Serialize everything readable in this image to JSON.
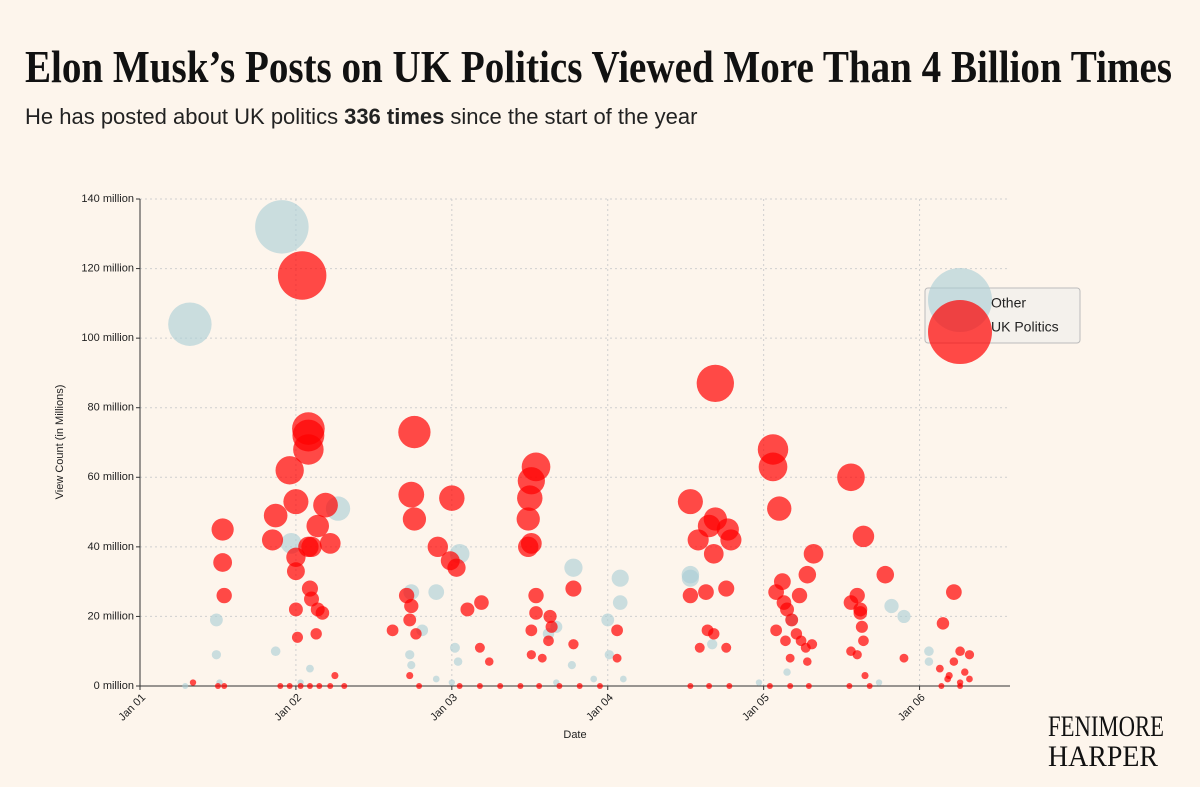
{
  "chart_data": {
    "type": "scatter",
    "title": "Elon Musk’s Posts on UK Politics Viewed More Than 4 Billion Times",
    "subtitle": {
      "before": "He has posted about UK politics",
      "highlight": "336 times",
      "after": "since the start of the year"
    },
    "x_label": "Date",
    "y_label": "View Count (in Millions)",
    "xlim": [
      1,
      6.58
    ],
    "xticks": [
      {
        "value": 1,
        "label": "Jan 01"
      },
      {
        "value": 2,
        "label": "Jan 02"
      },
      {
        "value": 3,
        "label": "Jan 03"
      },
      {
        "value": 4,
        "label": "Jan 04"
      },
      {
        "value": 5,
        "label": "Jan 05"
      },
      {
        "value": 6,
        "label": "Jan 06"
      }
    ],
    "ylim": [
      0,
      140
    ],
    "yticks": [
      {
        "value": 0,
        "label": "0 million"
      },
      {
        "value": 20,
        "label": "20 million"
      },
      {
        "value": 40,
        "label": "40 million"
      },
      {
        "value": 60,
        "label": "60 million"
      },
      {
        "value": 80,
        "label": "80 million"
      },
      {
        "value": 100,
        "label": "100 million"
      },
      {
        "value": 120,
        "label": "120 million"
      },
      {
        "value": 140,
        "label": "140 million"
      }
    ],
    "grid": true,
    "legend": "right",
    "series": [
      {
        "name": "Other",
        "color": "#a9cdd6",
        "x": [
          1.32,
          1.91,
          1.49,
          1.49,
          1.29,
          1.51,
          1.97,
          2.27,
          1.87,
          2.09,
          2.03,
          2.74,
          2.9,
          3.05,
          2.81,
          2.73,
          2.74,
          3.02,
          3.04,
          2.9,
          3.0,
          3.78,
          3.67,
          3.62,
          3.77,
          3.67,
          4.0,
          4.01,
          4.08,
          4.08,
          4.1,
          3.91,
          4.53,
          4.53,
          4.67,
          5.18,
          5.15,
          4.97,
          5.82,
          5.9,
          6.06,
          6.06,
          5.74
        ],
        "values": [
          104,
          132,
          19,
          9,
          0,
          1,
          41,
          51,
          10,
          5,
          1,
          27,
          27,
          38,
          16,
          9,
          6,
          11,
          7,
          2,
          1,
          34,
          17,
          15,
          6,
          1,
          19,
          9,
          31,
          24,
          2,
          2,
          31,
          32,
          12,
          19,
          4,
          1,
          23,
          20,
          10,
          7,
          1
        ]
      },
      {
        "name": "UK Politics",
        "color": "#ff0000",
        "x": [
          1.53,
          1.53,
          1.54,
          1.54,
          1.5,
          1.34,
          1.87,
          1.85,
          1.96,
          2.0,
          2.04,
          2.08,
          2.08,
          2.08,
          2.1,
          2.08,
          2.0,
          2.0,
          2.14,
          2.19,
          2.22,
          2.14,
          2.0,
          2.09,
          2.1,
          2.13,
          2.01,
          2.17,
          2.25,
          1.9,
          1.96,
          2.03,
          2.09,
          2.15,
          2.22,
          2.31,
          2.76,
          2.74,
          2.76,
          2.91,
          3.0,
          2.99,
          3.03,
          2.71,
          2.74,
          2.73,
          2.62,
          2.77,
          3.1,
          3.19,
          3.18,
          3.24,
          2.73,
          2.79,
          3.05,
          3.18,
          3.31,
          3.54,
          3.51,
          3.5,
          3.49,
          3.49,
          3.51,
          3.54,
          3.54,
          3.63,
          3.64,
          3.51,
          3.51,
          3.58,
          3.62,
          3.78,
          3.78,
          3.44,
          3.56,
          3.69,
          3.82,
          4.06,
          4.06,
          3.95,
          4.53,
          4.58,
          4.69,
          4.69,
          4.65,
          4.68,
          4.77,
          4.79,
          4.63,
          4.53,
          4.76,
          4.64,
          4.68,
          4.59,
          4.76,
          4.53,
          4.65,
          4.78,
          5.06,
          5.06,
          5.1,
          5.32,
          5.28,
          5.23,
          5.08,
          5.12,
          5.15,
          5.13,
          5.18,
          5.08,
          5.14,
          5.21,
          5.24,
          5.27,
          5.31,
          5.17,
          5.28,
          5.04,
          5.17,
          5.29,
          5.56,
          5.64,
          5.78,
          5.56,
          5.6,
          5.62,
          5.63,
          5.56,
          5.6,
          5.64,
          5.62,
          5.65,
          5.55,
          5.68,
          6.22,
          6.15,
          5.9,
          6.13,
          6.19,
          6.22,
          6.26,
          6.29,
          6.32,
          6.18,
          6.26,
          6.32,
          6.14,
          6.26
        ],
        "values": [
          45,
          35.5,
          26,
          0,
          0,
          1,
          49,
          42,
          62,
          53,
          118,
          74,
          72,
          68,
          40,
          40,
          37,
          33,
          46,
          52,
          41,
          22,
          22,
          28,
          25,
          15,
          14,
          21,
          3,
          0,
          0,
          0,
          0,
          0,
          0,
          0,
          73,
          55,
          48,
          40,
          54,
          36,
          34,
          26,
          23,
          19,
          16,
          15,
          22,
          24,
          11,
          7,
          3,
          0,
          0,
          0,
          0,
          63,
          59,
          54,
          48,
          40,
          41,
          26,
          21,
          20,
          17,
          16,
          9,
          8,
          13,
          28,
          12,
          0,
          0,
          0,
          0,
          16,
          8,
          0,
          53,
          42,
          87,
          48,
          46,
          38,
          45,
          42,
          27,
          26,
          28,
          16,
          15,
          11,
          11,
          0,
          0,
          0,
          68,
          63,
          51,
          38,
          32,
          26,
          27,
          30,
          22,
          24,
          19,
          16,
          13,
          15,
          13,
          11,
          12,
          8,
          7,
          0,
          0,
          0,
          60,
          43,
          32,
          24,
          26,
          21,
          17,
          10,
          9,
          13,
          22,
          3,
          0,
          0,
          27,
          18,
          8,
          5,
          3,
          7,
          10,
          4,
          9,
          2,
          1,
          2,
          0,
          0
        ]
      }
    ]
  },
  "branding": {
    "lines": [
      "FENIMORE",
      "HARPER"
    ]
  }
}
